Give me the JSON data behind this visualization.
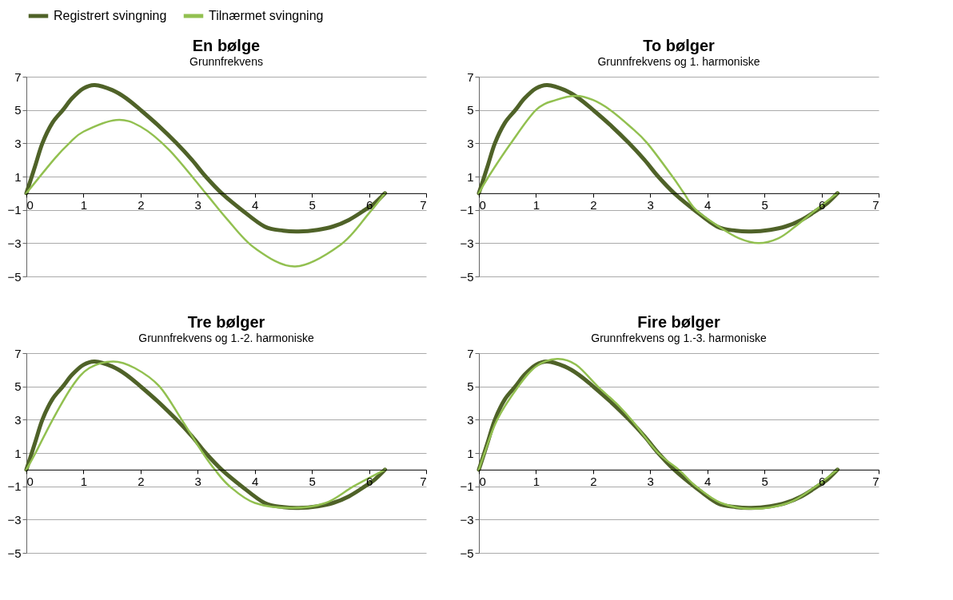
{
  "chart_data": [
    {
      "type": "line",
      "title": "En bølge",
      "subtitle": "Grunnfrekvens",
      "xlim": [
        0,
        7
      ],
      "xticks": [
        0,
        1,
        2,
        3,
        4,
        5,
        6,
        7
      ],
      "ylim": [
        -5,
        7
      ],
      "yticks": [
        -5,
        -3,
        -1,
        1,
        3,
        5,
        7
      ],
      "grid": "y",
      "legend": "top",
      "series": [
        {
          "name": "Registrert svingning",
          "color": "#4f6228",
          "x": [
            0,
            0.15,
            0.28,
            0.45,
            0.64,
            0.8,
            1.0,
            1.2,
            1.5,
            1.75,
            2.0,
            2.3,
            2.63,
            2.9,
            3.14,
            3.42,
            3.77,
            4.17,
            4.5,
            4.77,
            5.1,
            5.37,
            5.65,
            5.93,
            6.1,
            6.28
          ],
          "values": [
            0,
            1.6,
            3,
            4.2,
            5,
            5.7,
            6.3,
            6.5,
            6.2,
            5.7,
            5.0,
            4.1,
            3.0,
            2.0,
            1.0,
            0,
            -1,
            -2,
            -2.25,
            -2.3,
            -2.2,
            -2,
            -1.6,
            -1,
            -0.6,
            0
          ]
        },
        {
          "name": "Tilnærmet svingning",
          "color": "#92c050",
          "x": [
            0,
            0.5,
            0.75,
            1.0,
            1.57,
            2.0,
            2.5,
            3.14,
            3.5,
            4.0,
            4.71,
            5.5,
            6.0,
            6.28
          ],
          "values": [
            0,
            2.1,
            3.0,
            3.7,
            4.4,
            4.0,
            2.6,
            0,
            -1.5,
            -3.3,
            -4.4,
            -3.1,
            -1.2,
            0
          ]
        }
      ]
    },
    {
      "type": "line",
      "title": "To bølger",
      "subtitle": "Grunnfrekvens og 1. harmoniske",
      "xlim": [
        0,
        7
      ],
      "xticks": [
        0,
        1,
        2,
        3,
        4,
        5,
        6,
        7
      ],
      "ylim": [
        -5,
        7
      ],
      "yticks": [
        -5,
        -3,
        -1,
        1,
        3,
        5,
        7
      ],
      "grid": "y",
      "legend": "top",
      "series": [
        {
          "name": "Registrert svingning",
          "color": "#4f6228",
          "x": [
            0,
            0.15,
            0.28,
            0.45,
            0.64,
            0.8,
            1.0,
            1.2,
            1.5,
            1.75,
            2.0,
            2.3,
            2.63,
            2.9,
            3.14,
            3.42,
            3.77,
            4.17,
            4.5,
            4.77,
            5.1,
            5.37,
            5.65,
            5.93,
            6.1,
            6.28
          ],
          "values": [
            0,
            1.6,
            3,
            4.2,
            5,
            5.7,
            6.3,
            6.5,
            6.2,
            5.7,
            5.0,
            4.1,
            3.0,
            2.0,
            1.0,
            0,
            -1,
            -2,
            -2.25,
            -2.3,
            -2.2,
            -2,
            -1.6,
            -1,
            -0.6,
            0
          ]
        },
        {
          "name": "Tilnærmet svingning",
          "color": "#92c050",
          "x": [
            0,
            0.17,
            0.56,
            1.0,
            1.35,
            1.7,
            2.0,
            2.3,
            2.65,
            2.95,
            3.39,
            3.59,
            3.8,
            4.2,
            4.55,
            4.9,
            5.25,
            5.54,
            5.9,
            6.28
          ],
          "values": [
            0,
            1,
            3,
            5.0,
            5.6,
            5.85,
            5.6,
            5.0,
            4.0,
            3.0,
            1,
            0,
            -1,
            -2,
            -2.7,
            -3.0,
            -2.7,
            -2,
            -1,
            0
          ]
        }
      ]
    },
    {
      "type": "line",
      "title": "Tre bølger",
      "subtitle": "Grunnfrekvens og 1.-2. harmoniske",
      "xlim": [
        0,
        7
      ],
      "xticks": [
        0,
        1,
        2,
        3,
        4,
        5,
        6,
        7
      ],
      "ylim": [
        -5,
        7
      ],
      "yticks": [
        -5,
        -3,
        -1,
        1,
        3,
        5,
        7
      ],
      "grid": "y",
      "legend": "top",
      "series": [
        {
          "name": "Registrert svingning",
          "color": "#4f6228",
          "x": [
            0,
            0.15,
            0.28,
            0.45,
            0.64,
            0.8,
            1.0,
            1.2,
            1.5,
            1.75,
            2.0,
            2.3,
            2.63,
            2.9,
            3.14,
            3.42,
            3.77,
            4.17,
            4.5,
            4.77,
            5.1,
            5.37,
            5.65,
            5.93,
            6.1,
            6.28
          ],
          "values": [
            0,
            1.6,
            3,
            4.2,
            5,
            5.7,
            6.3,
            6.5,
            6.2,
            5.7,
            5.0,
            4.1,
            3.0,
            2.0,
            1.0,
            0,
            -1,
            -2,
            -2.25,
            -2.3,
            -2.2,
            -2,
            -1.6,
            -1,
            -0.6,
            0
          ]
        },
        {
          "name": "Tilnærmet svingning",
          "color": "#92c050",
          "x": [
            0,
            0.16,
            0.46,
            0.8,
            1.1,
            1.52,
            1.9,
            2.33,
            2.72,
            3.09,
            3.3,
            3.56,
            4.0,
            4.65,
            5.24,
            5.73,
            6.28
          ],
          "values": [
            0,
            1,
            3,
            5,
            6.1,
            6.5,
            6.1,
            5,
            3,
            1,
            0,
            -1,
            -2,
            -2.3,
            -2,
            -1,
            0
          ]
        }
      ]
    },
    {
      "type": "line",
      "title": "Fire bølger",
      "subtitle": "Grunnfrekvens og 1.-3. harmoniske",
      "xlim": [
        0,
        7
      ],
      "xticks": [
        0,
        1,
        2,
        3,
        4,
        5,
        6,
        7
      ],
      "ylim": [
        -5,
        7
      ],
      "yticks": [
        -5,
        -3,
        -1,
        1,
        3,
        5,
        7
      ],
      "grid": "y",
      "legend": "top",
      "series": [
        {
          "name": "Registrert svingning",
          "color": "#4f6228",
          "x": [
            0,
            0.15,
            0.28,
            0.45,
            0.64,
            0.8,
            1.0,
            1.2,
            1.5,
            1.75,
            2.0,
            2.3,
            2.63,
            2.9,
            3.14,
            3.42,
            3.77,
            4.17,
            4.5,
            4.77,
            5.1,
            5.37,
            5.65,
            5.93,
            6.1,
            6.28
          ],
          "values": [
            0,
            1.6,
            3,
            4.2,
            5,
            5.7,
            6.3,
            6.5,
            6.2,
            5.7,
            5.0,
            4.1,
            3.0,
            2.0,
            1.0,
            0,
            -1,
            -2,
            -2.25,
            -2.3,
            -2.2,
            -2,
            -1.6,
            -1,
            -0.6,
            0
          ]
        },
        {
          "name": "Tilnærmet svingning",
          "color": "#92c050",
          "x": [
            0,
            0.1,
            0.32,
            0.69,
            1.0,
            1.37,
            1.7,
            2.08,
            2.4,
            2.67,
            3.14,
            3.5,
            3.8,
            4.24,
            4.78,
            5.42,
            5.9,
            6.28
          ],
          "values": [
            0,
            1,
            3,
            5,
            6.2,
            6.65,
            6.3,
            5,
            4.0,
            3,
            1,
            0,
            -1,
            -2,
            -2.35,
            -2,
            -1,
            0
          ]
        }
      ]
    }
  ]
}
